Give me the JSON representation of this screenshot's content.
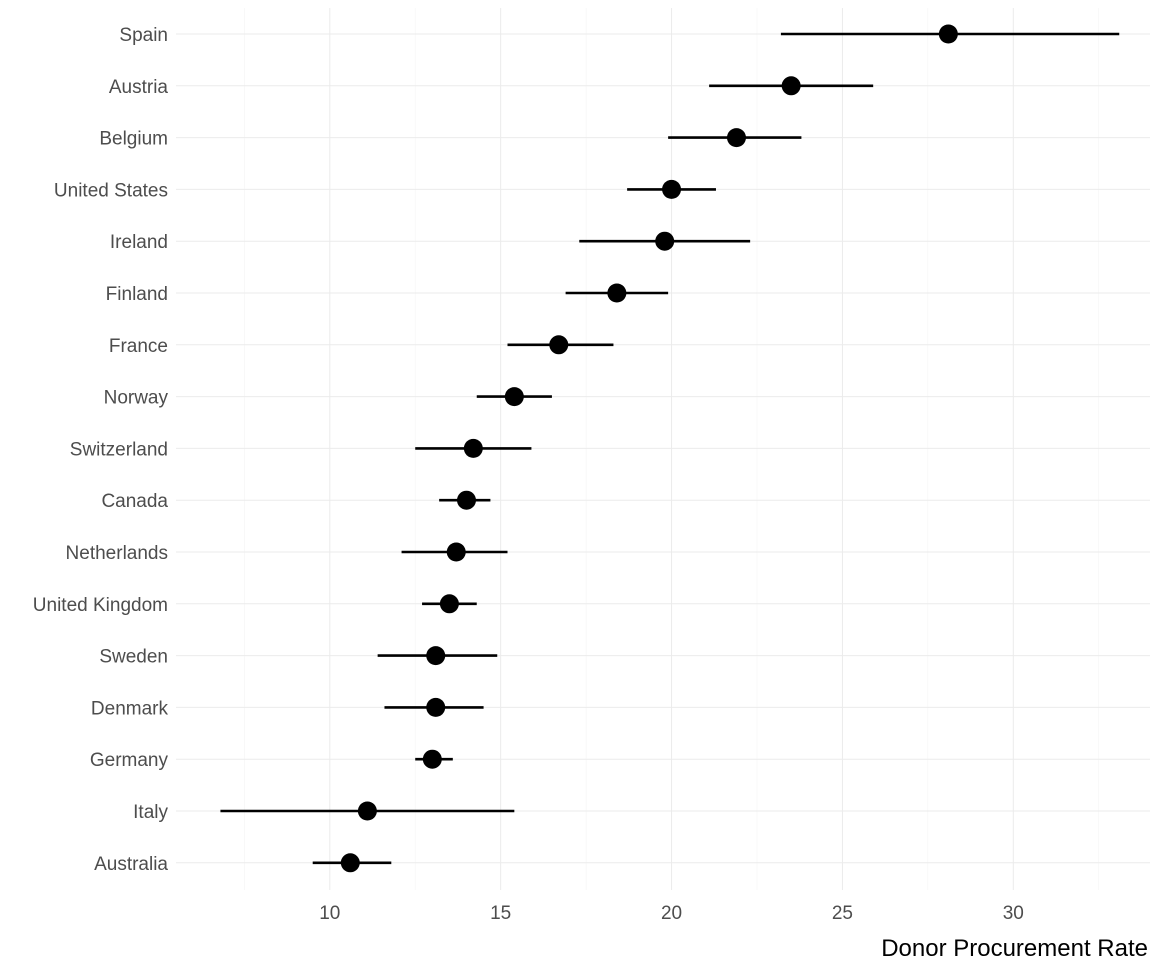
{
  "chart_data": {
    "type": "scatter",
    "title": "",
    "xlabel": "Donor Procurement Rate",
    "ylabel": "",
    "xlim": [
      5.5,
      34
    ],
    "x_ticks": [
      10,
      15,
      20,
      25,
      30
    ],
    "x_tick_labels": [
      "10",
      "15",
      "20",
      "25",
      "30"
    ],
    "grid": true,
    "legend": "none",
    "point_color": "#000000",
    "categories": [
      "Spain",
      "Austria",
      "Belgium",
      "United States",
      "Ireland",
      "Finland",
      "France",
      "Norway",
      "Switzerland",
      "Canada",
      "Netherlands",
      "United Kingdom",
      "Sweden",
      "Denmark",
      "Germany",
      "Italy",
      "Australia"
    ],
    "series": [
      {
        "values": [
          28.1,
          23.5,
          21.9,
          20.0,
          19.8,
          18.4,
          16.7,
          15.4,
          14.2,
          14.0,
          13.7,
          13.5,
          13.1,
          13.1,
          13.0,
          11.1,
          10.6
        ],
        "lower": [
          23.2,
          21.1,
          19.9,
          18.7,
          17.3,
          16.9,
          15.2,
          14.3,
          12.5,
          13.2,
          12.1,
          12.7,
          11.4,
          11.6,
          12.5,
          6.8,
          9.5
        ],
        "upper": [
          33.1,
          25.9,
          23.8,
          21.3,
          22.3,
          19.9,
          18.3,
          16.5,
          15.9,
          14.7,
          15.2,
          14.3,
          14.9,
          14.5,
          13.6,
          15.4,
          11.8
        ]
      }
    ]
  }
}
